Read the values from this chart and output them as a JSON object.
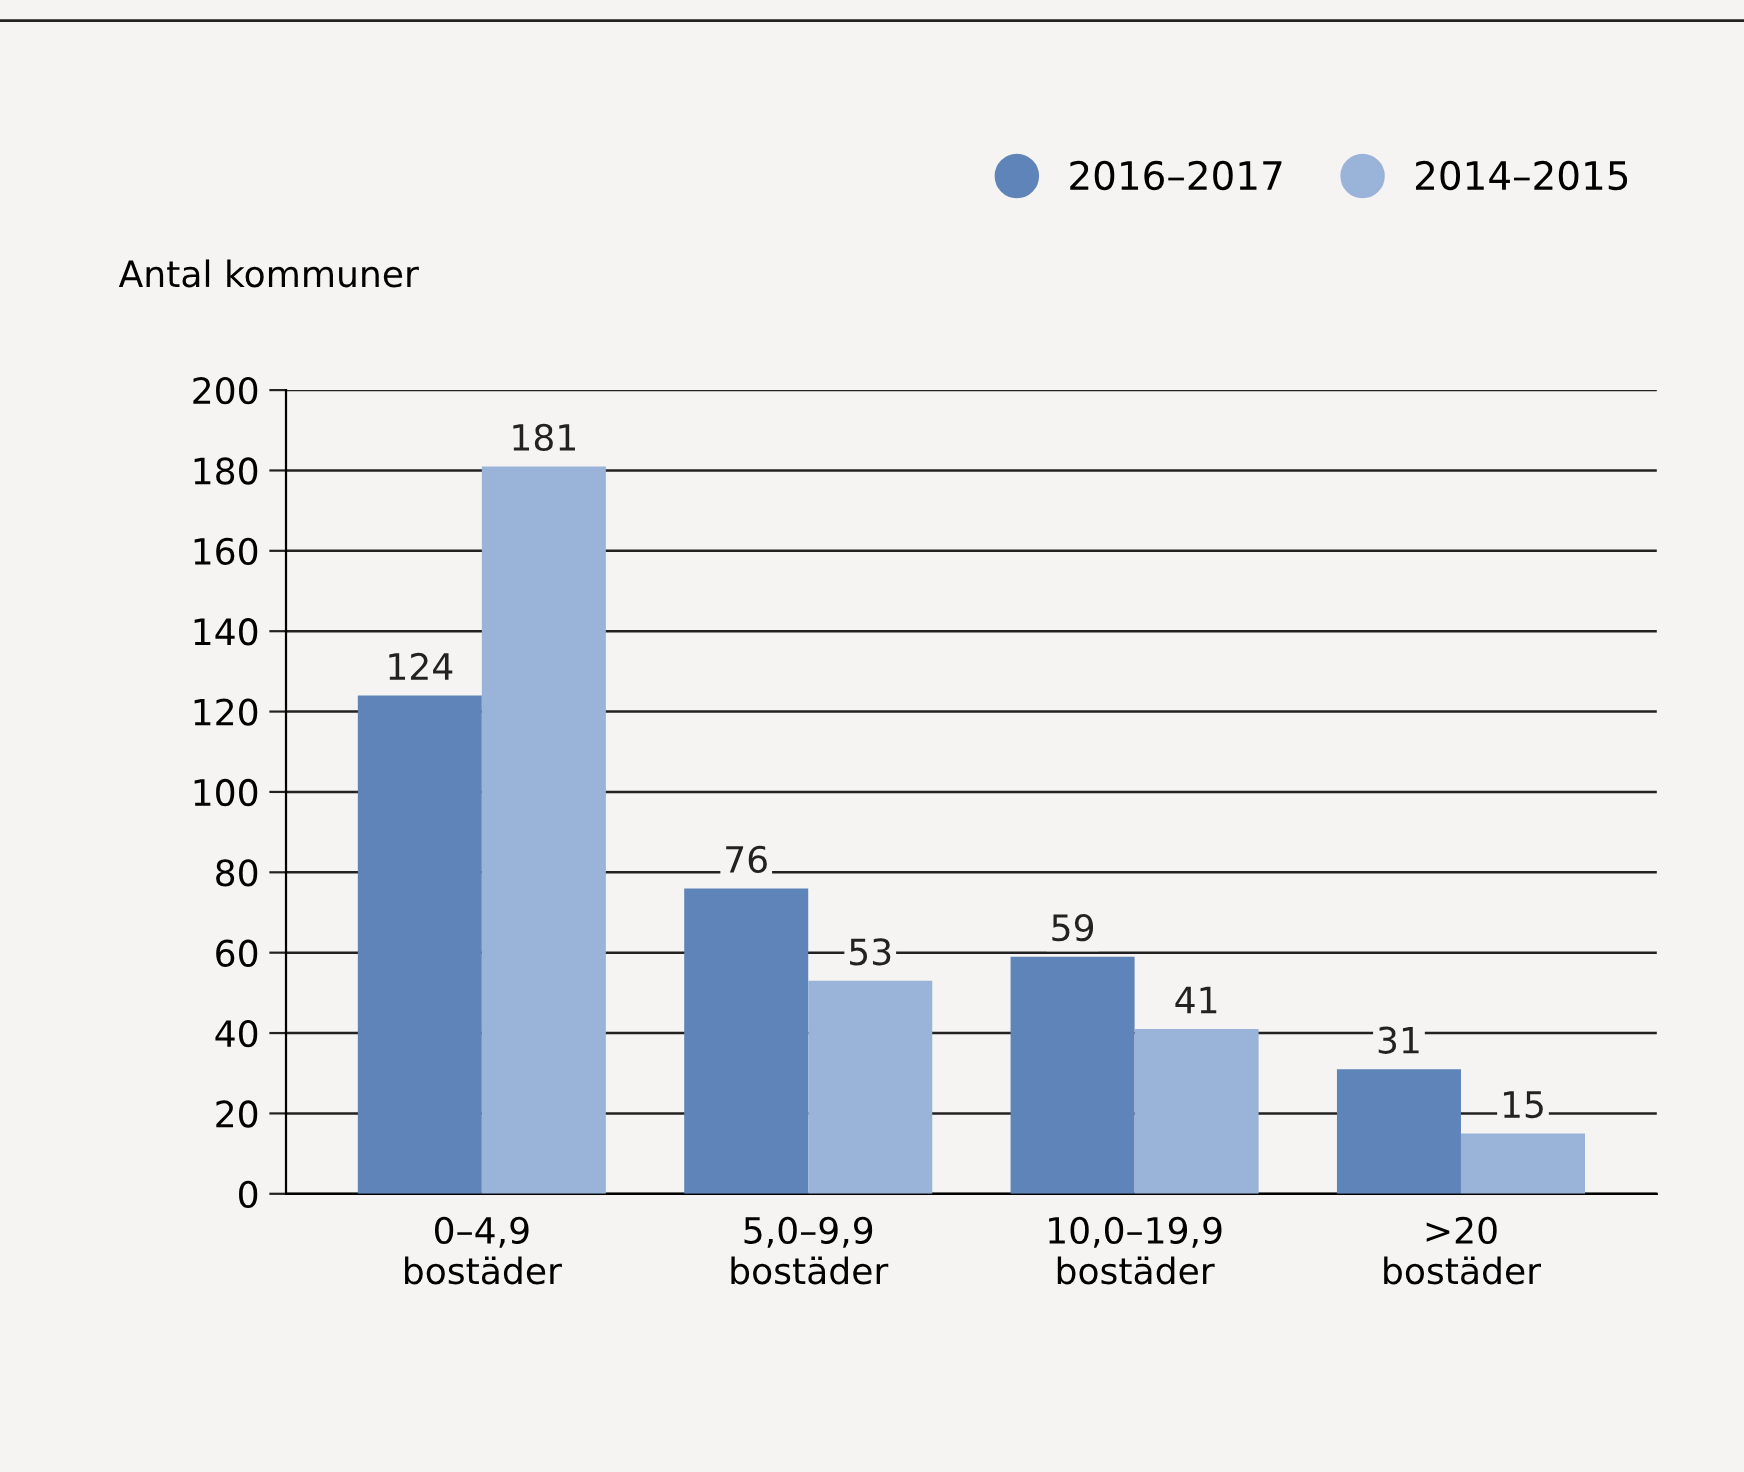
{
  "chart_data": {
    "type": "bar",
    "ylabel": "Antal kommuner",
    "categories": [
      "0–4,9\nbostäder",
      "5,0–9,9\nbostäder",
      "10,0–19,9\nbostäder",
      ">20\nbostäder"
    ],
    "series": [
      {
        "name": "2016–2017",
        "color": "#5f84b9",
        "values": [
          124,
          76,
          59,
          31
        ]
      },
      {
        "name": "2014–2015",
        "color": "#9ab3d9",
        "values": [
          181,
          53,
          41,
          15
        ]
      }
    ],
    "ylim": [
      0,
      200
    ],
    "yticks": [
      0,
      20,
      40,
      60,
      80,
      100,
      120,
      140,
      160,
      180,
      200
    ],
    "grid": "y",
    "legend": "top right",
    "data_labels": true
  }
}
